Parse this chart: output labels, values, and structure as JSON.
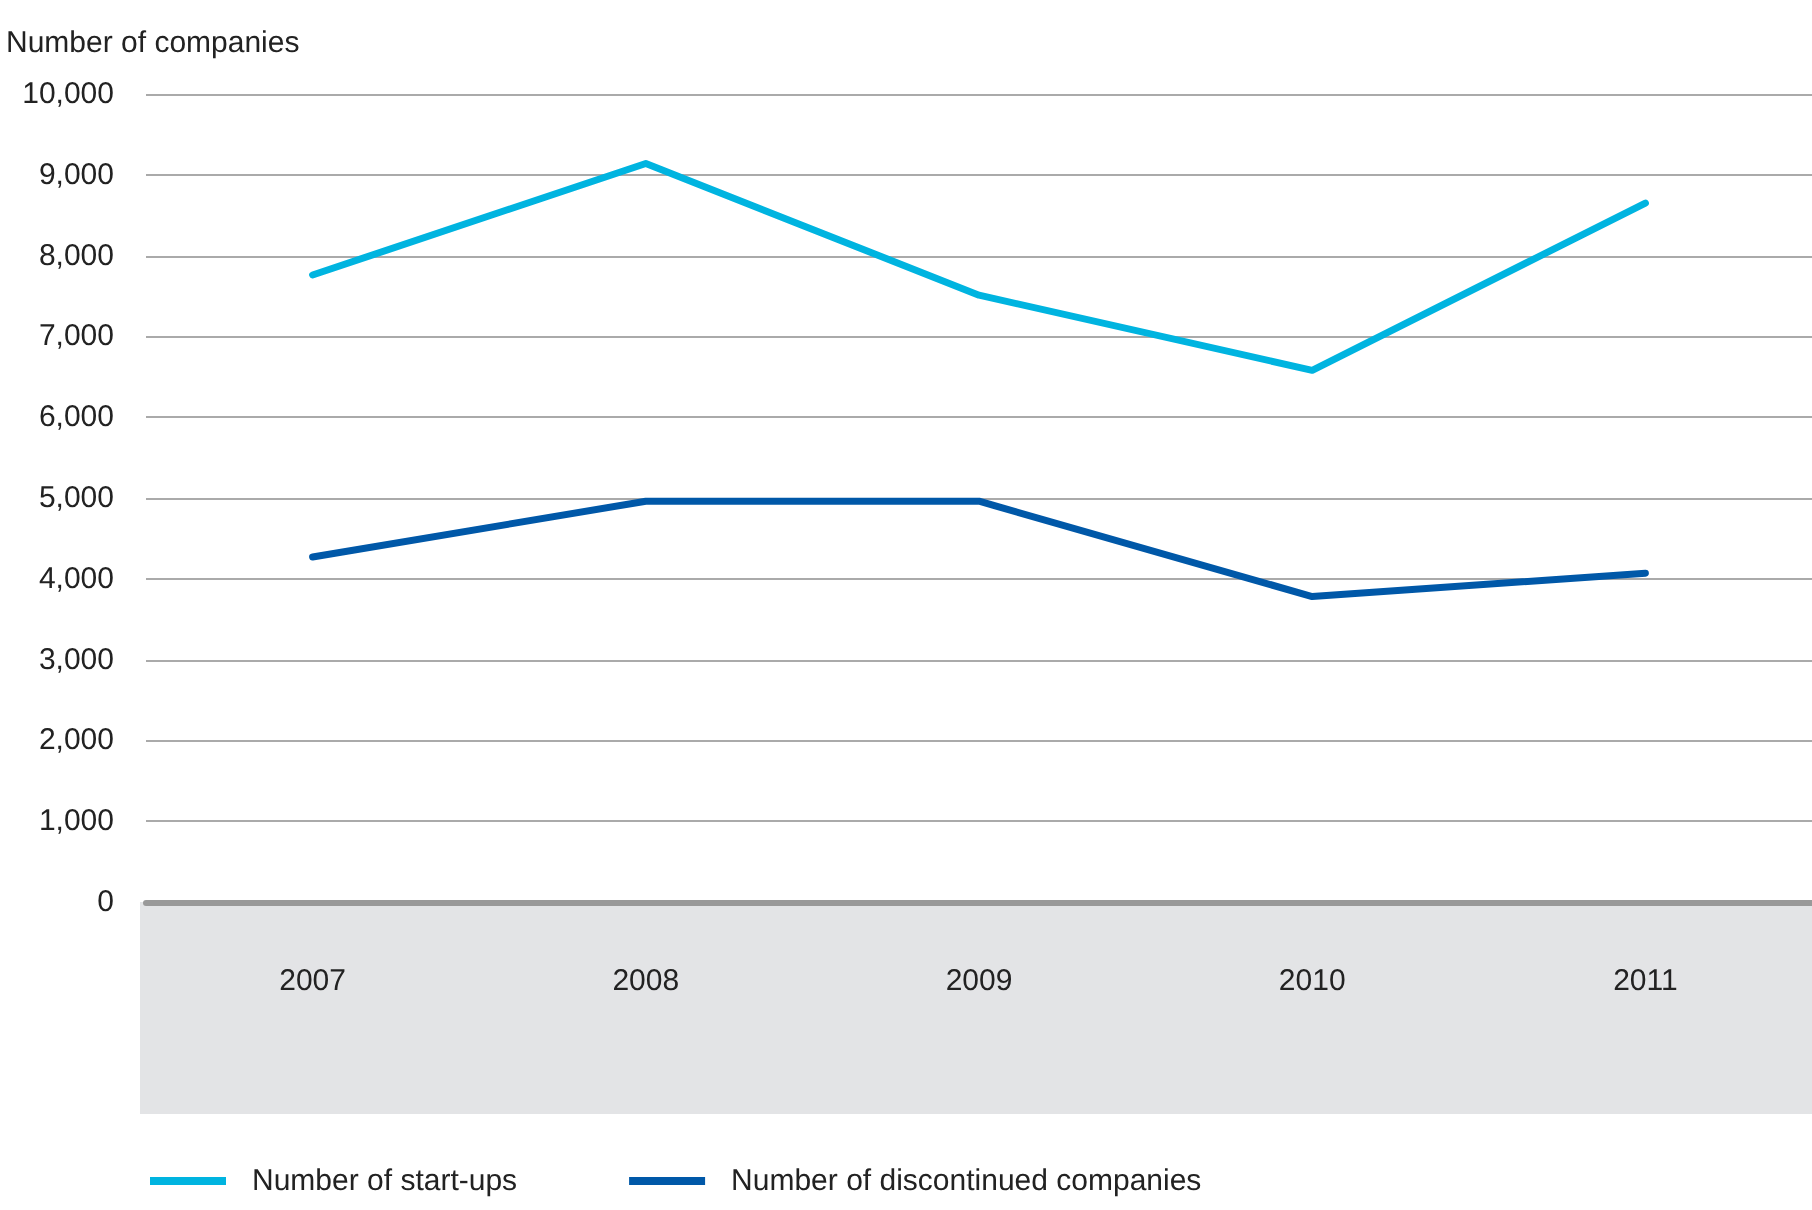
{
  "chart_data": {
    "type": "line",
    "ylabel": "Number of companies",
    "categories": [
      "2007",
      "2008",
      "2009",
      "2010",
      "2011"
    ],
    "series": [
      {
        "name": "Number of start-ups",
        "color": "#00b4e0",
        "values": [
          7760,
          9140,
          7510,
          6580,
          8650
        ]
      },
      {
        "name": "Number of discontinued companies",
        "color": "#0058a8",
        "values": [
          4270,
          4960,
          4960,
          3780,
          4070
        ]
      }
    ],
    "ylim": [
      0,
      10000
    ],
    "yticks": [
      0,
      {
        "value": 1000,
        "label": "1,000"
      },
      {
        "value": 2000,
        "label": "2,000"
      },
      {
        "value": 3000,
        "label": "3,000"
      },
      {
        "value": 4000,
        "label": "4,000"
      },
      {
        "value": 5000,
        "label": "5,000"
      },
      {
        "value": 6000,
        "label": "6,000"
      },
      {
        "value": 7000,
        "label": "7,000"
      },
      {
        "value": 8000,
        "label": "8,000"
      },
      {
        "value": 9000,
        "label": "9,000"
      },
      {
        "value": 10000,
        "label": "10,000"
      }
    ],
    "grid": "y",
    "legend": "bottom",
    "marker": "none",
    "line_style": "solid"
  }
}
